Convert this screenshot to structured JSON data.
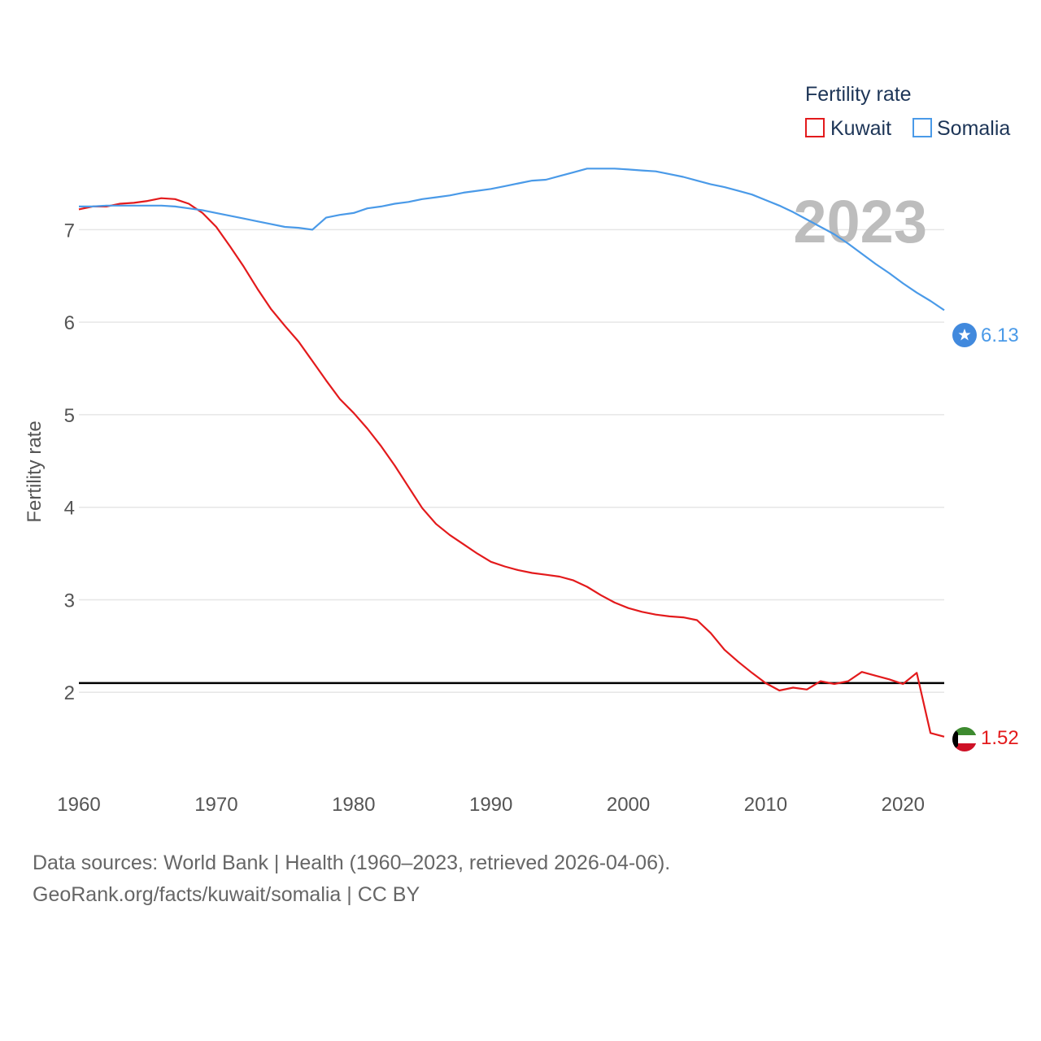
{
  "chart_data": {
    "type": "line",
    "title": "",
    "xlabel": "",
    "ylabel": "Fertility rate",
    "xlim": [
      1960,
      2023
    ],
    "ylim": [
      1.0,
      7.9
    ],
    "yticks": [
      2,
      3,
      4,
      5,
      6,
      7
    ],
    "xticks": [
      1960,
      1970,
      1980,
      1990,
      2000,
      2010,
      2020
    ],
    "gridlines": true,
    "legend_title": "Fertility rate",
    "legend_position": "top-right",
    "year_label": "2023",
    "reference_line": {
      "y": 2.1,
      "color": "#000000"
    },
    "x": [
      1960,
      1961,
      1962,
      1963,
      1964,
      1965,
      1966,
      1967,
      1968,
      1969,
      1970,
      1971,
      1972,
      1973,
      1974,
      1975,
      1976,
      1977,
      1978,
      1979,
      1980,
      1981,
      1982,
      1983,
      1984,
      1985,
      1986,
      1987,
      1988,
      1989,
      1990,
      1991,
      1992,
      1993,
      1994,
      1995,
      1996,
      1997,
      1998,
      1999,
      2000,
      2001,
      2002,
      2003,
      2004,
      2005,
      2006,
      2007,
      2008,
      2009,
      2010,
      2011,
      2012,
      2013,
      2014,
      2015,
      2016,
      2017,
      2018,
      2019,
      2020,
      2021,
      2022,
      2023
    ],
    "series": [
      {
        "name": "Kuwait",
        "color": "#e31a1c",
        "end_label": "1.52",
        "values": [
          7.22,
          7.25,
          7.25,
          7.28,
          7.29,
          7.31,
          7.34,
          7.33,
          7.28,
          7.18,
          7.03,
          6.82,
          6.6,
          6.36,
          6.14,
          5.96,
          5.79,
          5.58,
          5.37,
          5.17,
          5.02,
          4.85,
          4.66,
          4.45,
          4.22,
          3.99,
          3.82,
          3.7,
          3.6,
          3.5,
          3.41,
          3.36,
          3.32,
          3.29,
          3.27,
          3.25,
          3.21,
          3.14,
          3.05,
          2.97,
          2.91,
          2.87,
          2.84,
          2.82,
          2.81,
          2.78,
          2.64,
          2.46,
          2.33,
          2.21,
          2.1,
          2.02,
          2.05,
          2.03,
          2.12,
          2.09,
          2.12,
          2.22,
          2.18,
          2.14,
          2.09,
          2.21,
          1.56,
          1.52
        ]
      },
      {
        "name": "Somalia",
        "color": "#4a9ae8",
        "end_label": "6.13",
        "values": [
          7.25,
          7.25,
          7.26,
          7.26,
          7.26,
          7.26,
          7.26,
          7.25,
          7.23,
          7.21,
          7.18,
          7.15,
          7.12,
          7.09,
          7.06,
          7.03,
          7.02,
          7.0,
          7.13,
          7.16,
          7.18,
          7.23,
          7.25,
          7.28,
          7.3,
          7.33,
          7.35,
          7.37,
          7.4,
          7.42,
          7.44,
          7.47,
          7.5,
          7.53,
          7.54,
          7.58,
          7.62,
          7.66,
          7.66,
          7.66,
          7.65,
          7.64,
          7.63,
          7.6,
          7.57,
          7.53,
          7.49,
          7.46,
          7.42,
          7.38,
          7.32,
          7.26,
          7.19,
          7.11,
          7.03,
          6.95,
          6.85,
          6.74,
          6.63,
          6.53,
          6.42,
          6.32,
          6.23,
          6.13
        ]
      }
    ]
  },
  "footer": {
    "line1": "Data sources: World Bank | Health (1960–2023, retrieved 2026-04-06).",
    "line2": "GeoRank.org/facts/kuwait/somalia | CC BY"
  }
}
